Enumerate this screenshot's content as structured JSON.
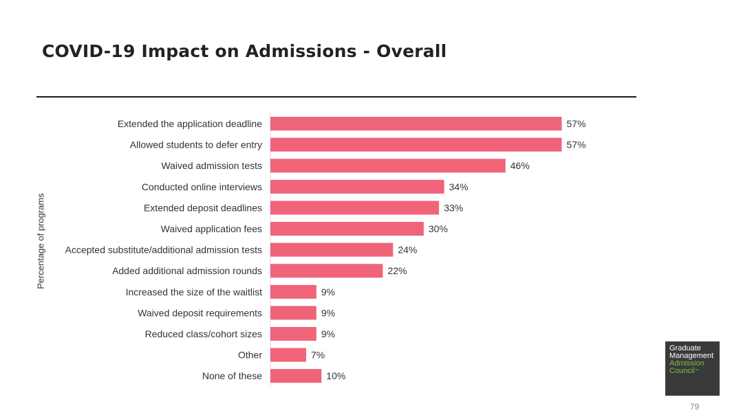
{
  "slide": {
    "title": "COVID-19 Impact on Admissions - Overall",
    "page_number": "79"
  },
  "logo": {
    "line1": "Graduate",
    "line2": "Management",
    "line3": "Admission",
    "line4": "Council",
    "tm": "™",
    "colors": {
      "background": "#3a3a3a",
      "white_text": "#ffffff",
      "green_text": "#7ac143"
    }
  },
  "chart_data": {
    "type": "bar",
    "orientation": "horizontal",
    "ylabel": "Percentage of programs",
    "xlim": [
      0,
      100
    ],
    "grid": false,
    "bar_color": "#f0647a",
    "categories": [
      "Extended the application deadline",
      "Allowed students to defer entry",
      "Waived admission tests",
      "Conducted online interviews",
      "Extended deposit deadlines",
      "Waived application fees",
      "Accepted substitute/additional admission tests",
      "Added additional admission rounds",
      "Increased the size of the waitlist",
      "Waived deposit requirements",
      "Reduced class/cohort sizes",
      "Other",
      "None of these"
    ],
    "values": [
      57,
      57,
      46,
      34,
      33,
      30,
      24,
      22,
      9,
      9,
      9,
      7,
      10
    ],
    "data_labels": [
      "57%",
      "57%",
      "46%",
      "34%",
      "33%",
      "30%",
      "24%",
      "22%",
      "9%",
      "9%",
      "9%",
      "7%",
      "10%"
    ]
  }
}
